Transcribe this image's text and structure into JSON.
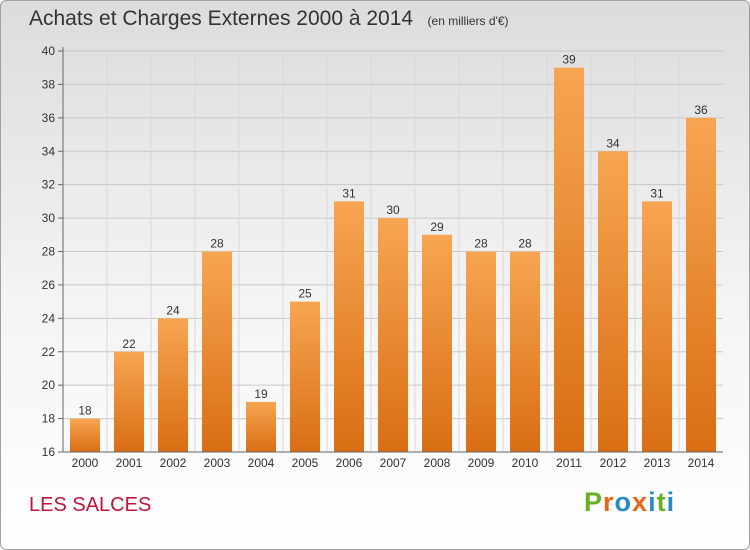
{
  "header": {
    "title": "Achats et Charges Externes 2000 à 2014",
    "unit": "(en milliers d'€)"
  },
  "footer": {
    "commune": "LES SALCES",
    "logo": "Proxiti"
  },
  "colors": {
    "bar_top": "#f7a552",
    "bar_bottom": "#d96e14",
    "logo_letters": [
      "#6ab023",
      "#e8651a",
      "#2a8ac8",
      "#e8651a",
      "#2a8ac8",
      "#6ab023",
      "#2a8ac8"
    ]
  },
  "chart_data": {
    "type": "bar",
    "title": "Achats et Charges Externes 2000 à 2014",
    "subtitle": "(en milliers d'€)",
    "categories": [
      "2000",
      "2001",
      "2002",
      "2003",
      "2004",
      "2005",
      "2006",
      "2007",
      "2008",
      "2009",
      "2010",
      "2011",
      "2012",
      "2013",
      "2014"
    ],
    "values": [
      18,
      22,
      24,
      28,
      19,
      25,
      31,
      30,
      29,
      28,
      28,
      39,
      34,
      31,
      36
    ],
    "ylim": [
      16,
      40
    ],
    "yticks": [
      16,
      18,
      20,
      22,
      24,
      26,
      28,
      30,
      32,
      34,
      36,
      38,
      40
    ],
    "grid": true,
    "legend": "none"
  }
}
